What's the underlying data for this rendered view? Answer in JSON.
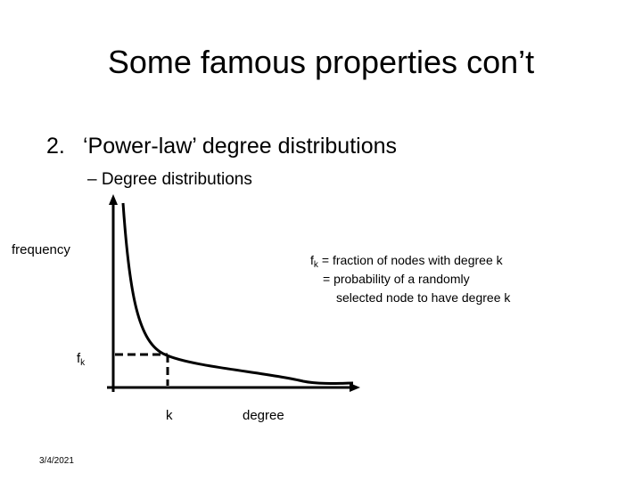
{
  "title": "Some famous properties con’t",
  "bullet": {
    "number": "2.",
    "text": "‘Power-law’ degree distributions",
    "sub": "– Degree distributions"
  },
  "graph": {
    "y_label": "frequency",
    "x_label": "degree",
    "x_mark": "k",
    "y_mark": {
      "base": "f",
      "subscript": "k"
    },
    "note": {
      "base": "f",
      "subscript": "k",
      "line1": "= fraction of nodes with degree k",
      "line2": "= probability of a randomly",
      "line3": "selected node to have degree k"
    }
  },
  "footer": {
    "date": "3/4/2021"
  }
}
